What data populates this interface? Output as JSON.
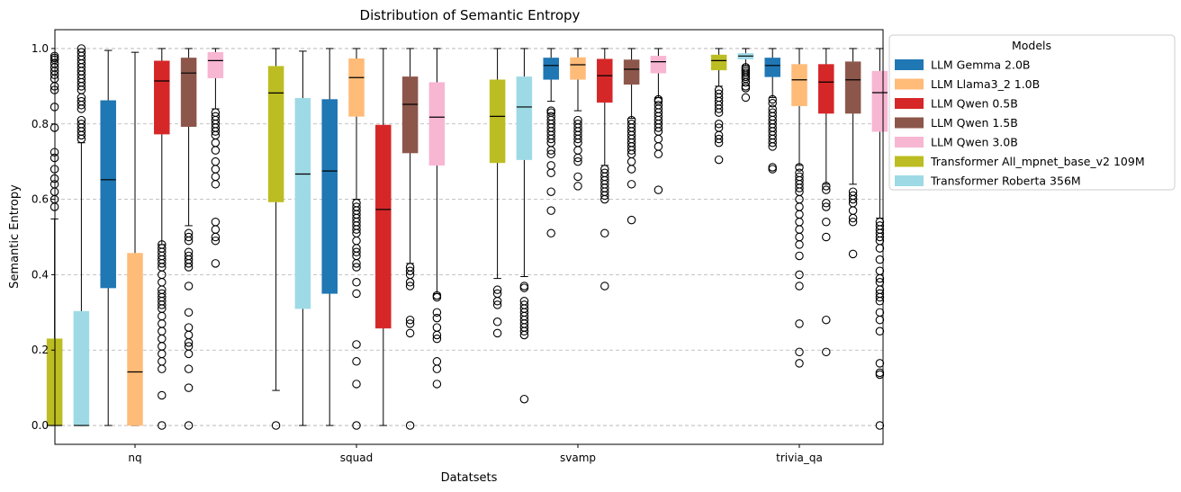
{
  "chart_data": {
    "type": "box",
    "title": "Distribution of Semantic Entropy",
    "xlabel": "Datatsets",
    "ylabel": "Semantic Entropy",
    "ylim": [
      -0.05,
      1.05
    ],
    "yticks": [
      "0.0",
      "0.2",
      "0.4",
      "0.6",
      "0.8",
      "1.0"
    ],
    "ytick_values": [
      0,
      0.2,
      0.4,
      0.6,
      0.8,
      1.0
    ],
    "grid": "horizontal dashed",
    "legend_title": "Models",
    "legend_position": "outside right",
    "categories": [
      "nq",
      "squad",
      "svamp",
      "trivia_qa"
    ],
    "series": [
      {
        "name": "LLM Gemma 2.0B",
        "color": "#1f77b4",
        "boxes": [
          {
            "q1": 0.365,
            "median": 0.652,
            "q3": 0.862,
            "whisker_low": 0.0,
            "whisker_high": 0.995,
            "outliers": []
          },
          {
            "q1": 0.35,
            "median": 0.675,
            "q3": 0.865,
            "whisker_low": 0.0,
            "whisker_high": 1.0,
            "outliers": []
          },
          {
            "q1": 0.918,
            "median": 0.955,
            "q3": 0.975,
            "whisker_low": 0.86,
            "whisker_high": 1.0,
            "outliers": [
              0.835,
              0.83,
              0.82,
              0.81,
              0.8,
              0.79,
              0.78,
              0.77,
              0.76,
              0.75,
              0.73,
              0.72,
              0.69,
              0.67,
              0.62,
              0.57,
              0.51
            ]
          },
          {
            "q1": 0.925,
            "median": 0.955,
            "q3": 0.975,
            "whisker_low": 0.87,
            "whisker_high": 1.0,
            "outliers": [
              0.865,
              0.855,
              0.84,
              0.83,
              0.82,
              0.81,
              0.8,
              0.79,
              0.78,
              0.77,
              0.76,
              0.75,
              0.74,
              0.685,
              0.68
            ]
          }
        ]
      },
      {
        "name": "LLM Llama3_2 1.0B",
        "color": "#ffbb78",
        "boxes": [
          {
            "q1": 0.0,
            "median": 0.142,
            "q3": 0.457,
            "whisker_low": 0.0,
            "whisker_high": 0.99,
            "outliers": []
          },
          {
            "q1": 0.82,
            "median": 0.923,
            "q3": 0.973,
            "whisker_low": 0.6,
            "whisker_high": 1.0,
            "outliers": [
              0.59,
              0.58,
              0.57,
              0.56,
              0.55,
              0.54,
              0.53,
              0.52,
              0.51,
              0.49,
              0.47,
              0.46,
              0.45,
              0.43,
              0.42,
              0.38,
              0.35,
              0.215,
              0.17,
              0.11,
              0.0
            ]
          },
          {
            "q1": 0.918,
            "median": 0.957,
            "q3": 0.976,
            "whisker_low": 0.835,
            "whisker_high": 1.0,
            "outliers": [
              0.81,
              0.8,
              0.79,
              0.78,
              0.77,
              0.76,
              0.75,
              0.73,
              0.71,
              0.7,
              0.66,
              0.635
            ]
          },
          {
            "q1": 0.848,
            "median": 0.917,
            "q3": 0.958,
            "whisker_low": 0.69,
            "whisker_high": 1.0,
            "outliers": [
              0.685,
              0.67,
              0.66,
              0.65,
              0.64,
              0.63,
              0.62,
              0.6,
              0.58,
              0.56,
              0.54,
              0.52,
              0.5,
              0.48,
              0.45,
              0.4,
              0.37,
              0.27,
              0.195,
              0.165
            ]
          }
        ]
      },
      {
        "name": "LLM Qwen 0.5B",
        "color": "#d62728",
        "boxes": [
          {
            "q1": 0.773,
            "median": 0.914,
            "q3": 0.967,
            "whisker_low": 0.48,
            "whisker_high": 1.0,
            "outliers": [
              0.48,
              0.47,
              0.46,
              0.45,
              0.44,
              0.43,
              0.42,
              0.4,
              0.38,
              0.36,
              0.35,
              0.34,
              0.33,
              0.32,
              0.31,
              0.29,
              0.27,
              0.25,
              0.23,
              0.21,
              0.19,
              0.17,
              0.15,
              0.08,
              0.0
            ]
          },
          {
            "q1": 0.258,
            "median": 0.573,
            "q3": 0.797,
            "whisker_low": 0.0,
            "whisker_high": 1.0,
            "outliers": []
          },
          {
            "q1": 0.857,
            "median": 0.928,
            "q3": 0.972,
            "whisker_low": 0.69,
            "whisker_high": 1.0,
            "outliers": [
              0.68,
              0.67,
              0.66,
              0.65,
              0.64,
              0.63,
              0.62,
              0.61,
              0.6,
              0.51,
              0.37
            ]
          },
          {
            "q1": 0.828,
            "median": 0.911,
            "q3": 0.958,
            "whisker_low": 0.64,
            "whisker_high": 1.0,
            "outliers": [
              0.635,
              0.625,
              0.59,
              0.58,
              0.54,
              0.5,
              0.28,
              0.195
            ]
          }
        ]
      },
      {
        "name": "LLM Qwen 1.5B",
        "color": "#8c564b",
        "boxes": [
          {
            "q1": 0.793,
            "median": 0.935,
            "q3": 0.975,
            "whisker_low": 0.53,
            "whisker_high": 1.0,
            "outliers": [
              0.51,
              0.5,
              0.49,
              0.46,
              0.45,
              0.44,
              0.43,
              0.42,
              0.37,
              0.3,
              0.26,
              0.24,
              0.22,
              0.21,
              0.19,
              0.15,
              0.1,
              0.0
            ]
          },
          {
            "q1": 0.723,
            "median": 0.852,
            "q3": 0.925,
            "whisker_low": 0.43,
            "whisker_high": 1.0,
            "outliers": [
              0.42,
              0.41,
              0.4,
              0.38,
              0.37,
              0.28,
              0.27,
              0.245,
              0.0
            ]
          },
          {
            "q1": 0.905,
            "median": 0.945,
            "q3": 0.97,
            "whisker_low": 0.815,
            "whisker_high": 1.0,
            "outliers": [
              0.81,
              0.8,
              0.79,
              0.78,
              0.77,
              0.76,
              0.75,
              0.74,
              0.73,
              0.72,
              0.7,
              0.68,
              0.64,
              0.545
            ]
          },
          {
            "q1": 0.828,
            "median": 0.917,
            "q3": 0.965,
            "whisker_low": 0.64,
            "whisker_high": 1.0,
            "outliers": [
              0.62,
              0.61,
              0.6,
              0.59,
              0.57,
              0.55,
              0.54,
              0.455
            ]
          }
        ]
      },
      {
        "name": "LLM Qwen 3.0B",
        "color": "#f7b6d2",
        "boxes": [
          {
            "q1": 0.922,
            "median": 0.968,
            "q3": 0.99,
            "whisker_low": 0.84,
            "whisker_high": 1.0,
            "outliers": [
              0.83,
              0.82,
              0.81,
              0.8,
              0.79,
              0.78,
              0.77,
              0.75,
              0.73,
              0.7,
              0.68,
              0.66,
              0.64,
              0.54,
              0.52,
              0.5,
              0.49,
              0.43
            ]
          },
          {
            "q1": 0.69,
            "median": 0.818,
            "q3": 0.91,
            "whisker_low": 0.35,
            "whisker_high": 1.0,
            "outliers": [
              0.345,
              0.34,
              0.3,
              0.285,
              0.26,
              0.24,
              0.23,
              0.17,
              0.15,
              0.11
            ]
          },
          {
            "q1": 0.935,
            "median": 0.965,
            "q3": 0.98,
            "whisker_low": 0.87,
            "whisker_high": 1.0,
            "outliers": [
              0.865,
              0.86,
              0.85,
              0.84,
              0.83,
              0.82,
              0.81,
              0.8,
              0.79,
              0.78,
              0.76,
              0.74,
              0.72,
              0.625
            ]
          },
          {
            "q1": 0.78,
            "median": 0.883,
            "q3": 0.94,
            "whisker_low": 0.55,
            "whisker_high": 1.0,
            "outliers": [
              0.54,
              0.53,
              0.52,
              0.51,
              0.5,
              0.49,
              0.47,
              0.44,
              0.41,
              0.39,
              0.38,
              0.36,
              0.35,
              0.34,
              0.33,
              0.3,
              0.28,
              0.25,
              0.165,
              0.14,
              0.135,
              0.0
            ]
          }
        ]
      },
      {
        "name": "Transformer All_mpnet_base_v2 109M",
        "color": "#bcbd22",
        "boxes": [
          {
            "q1": 0.0,
            "median": 0.0,
            "q3": 0.23,
            "whisker_low": 0.0,
            "whisker_high": 0.548,
            "outliers": [
              0.98,
              0.975,
              0.97,
              0.96,
              0.95,
              0.94,
              0.93,
              0.92,
              0.9,
              0.89,
              0.845,
              0.79,
              0.725,
              0.71,
              0.68,
              0.655,
              0.64,
              0.62,
              0.6,
              0.58
            ]
          },
          {
            "q1": 0.593,
            "median": 0.882,
            "q3": 0.953,
            "whisker_low": 0.093,
            "whisker_high": 1.0,
            "outliers": [
              0.0
            ]
          },
          {
            "q1": 0.697,
            "median": 0.82,
            "q3": 0.917,
            "whisker_low": 0.39,
            "whisker_high": 1.0,
            "outliers": [
              0.36,
              0.35,
              0.33,
              0.32,
              0.275,
              0.245
            ]
          },
          {
            "q1": 0.943,
            "median": 0.968,
            "q3": 0.983,
            "whisker_low": 0.9,
            "whisker_high": 1.0,
            "outliers": [
              0.89,
              0.88,
              0.87,
              0.86,
              0.85,
              0.84,
              0.83,
              0.8,
              0.79,
              0.77,
              0.76,
              0.75,
              0.705
            ]
          }
        ]
      },
      {
        "name": "Transformer Roberta 356M",
        "color": "#9edae5",
        "boxes": [
          {
            "q1": 0.0,
            "median": 0.0,
            "q3": 0.303,
            "whisker_low": 0.0,
            "whisker_high": 0.75,
            "outliers": [
              1.0,
              0.99,
              0.98,
              0.97,
              0.96,
              0.95,
              0.94,
              0.93,
              0.92,
              0.91,
              0.9,
              0.89,
              0.87,
              0.86,
              0.85,
              0.84,
              0.81,
              0.8,
              0.79,
              0.78,
              0.77,
              0.76
            ]
          },
          {
            "q1": 0.31,
            "median": 0.667,
            "q3": 0.868,
            "whisker_low": 0.0,
            "whisker_high": 0.993,
            "outliers": []
          },
          {
            "q1": 0.705,
            "median": 0.845,
            "q3": 0.925,
            "whisker_low": 0.395,
            "whisker_high": 1.0,
            "outliers": [
              0.37,
              0.365,
              0.33,
              0.32,
              0.31,
              0.3,
              0.29,
              0.28,
              0.27,
              0.26,
              0.25,
              0.24,
              0.07
            ]
          },
          {
            "q1": 0.972,
            "median": 0.98,
            "q3": 0.987,
            "whisker_low": 0.955,
            "whisker_high": 1.0,
            "outliers": [
              0.95,
              0.945,
              0.94,
              0.935,
              0.93,
              0.925,
              0.92,
              0.91,
              0.9,
              0.895,
              0.87
            ]
          }
        ]
      }
    ]
  }
}
